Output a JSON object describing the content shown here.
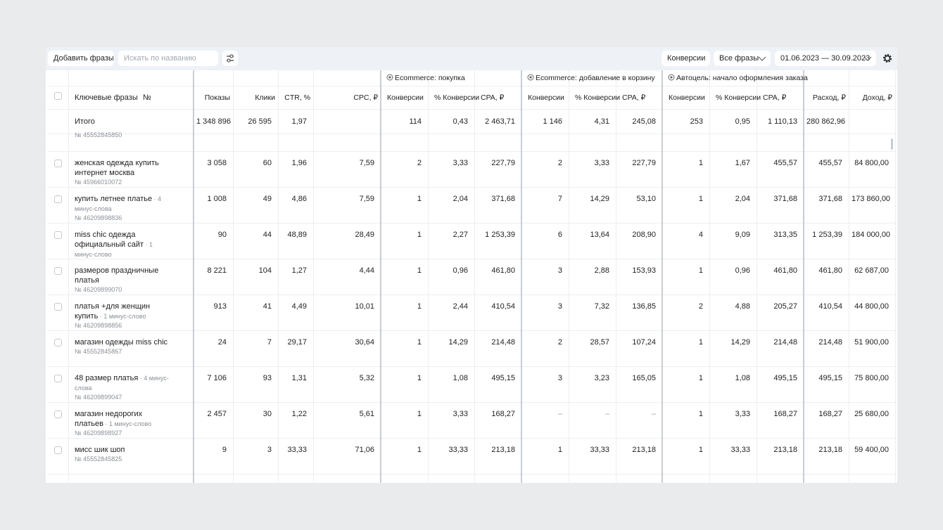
{
  "toolbar": {
    "add_button": "Добавить фразы",
    "search_placeholder": "Искать по названию",
    "conversions_button": "Конверсии",
    "phrases_filter": "Все фразы",
    "date_range": "01.06.2023 — 30.09.2023"
  },
  "table": {
    "groups": [
      "Ecommerce: покупка",
      "Ecommerce: добавление в корзину",
      "Автоцель: начало оформления заказа"
    ],
    "keyword_header": "Ключевые фразы",
    "number_header": "№",
    "columns": [
      "Показы",
      "Клики",
      "CTR, %",
      "CPC, ₽",
      "Конверсии",
      "% Конверсии",
      "CPA, ₽",
      "Конверсии",
      "% Конверсии",
      "CPA, ₽",
      "Конверсии",
      "% Конверсии",
      "CPA, ₽",
      "Расход, ₽",
      "Доход, ₽"
    ],
    "total": {
      "label": "Итого",
      "cells": [
        "1 348 896",
        "26 595",
        "1,97",
        null,
        "114",
        "0,43",
        "2 463,71",
        "1 146",
        "4,31",
        "245,08",
        "253",
        "0,95",
        "1 110,13",
        "280 862,96",
        null
      ]
    },
    "partial_row_id": "№ 45552845850",
    "rows": [
      {
        "phrase": "женская одежда купить интернет москва",
        "minus": null,
        "id": "№ 45966010072",
        "cells": [
          "3 058",
          "60",
          "1,96",
          "7,59",
          "2",
          "3,33",
          "227,79",
          "2",
          "3,33",
          "227,79",
          "1",
          "1,67",
          "455,57",
          "455,57",
          "84 800,00"
        ]
      },
      {
        "phrase": "купить летнее платье",
        "minus": "4 минус-слова",
        "id": "№ 46209898836",
        "cells": [
          "1 008",
          "49",
          "4,86",
          "7,59",
          "1",
          "2,04",
          "371,68",
          "7",
          "14,29",
          "53,10",
          "1",
          "2,04",
          "371,68",
          "371,68",
          "173 860,00"
        ]
      },
      {
        "phrase": "miss chic одежда официальный сайт",
        "minus": "1 минус-слово",
        "id": null,
        "cells": [
          "90",
          "44",
          "48,89",
          "28,49",
          "1",
          "2,27",
          "1 253,39",
          "6",
          "13,64",
          "208,90",
          "4",
          "9,09",
          "313,35",
          "1 253,39",
          "184 000,00"
        ]
      },
      {
        "phrase": "размеров праздничные платья",
        "minus": null,
        "id": "№ 46209899070",
        "cells": [
          "8 221",
          "104",
          "1,27",
          "4,44",
          "1",
          "0,96",
          "461,80",
          "3",
          "2,88",
          "153,93",
          "1",
          "0,96",
          "461,80",
          "461,80",
          "62 687,00"
        ]
      },
      {
        "phrase": "платья +для женщин купить",
        "minus": "1 минус-слово",
        "id": "№ 46209898856",
        "cells": [
          "913",
          "41",
          "4,49",
          "10,01",
          "1",
          "2,44",
          "410,54",
          "3",
          "7,32",
          "136,85",
          "2",
          "4,88",
          "205,27",
          "410,54",
          "44 800,00"
        ]
      },
      {
        "phrase": "магазин одежды miss chic",
        "minus": null,
        "id": "№ 45552845867",
        "cells": [
          "24",
          "7",
          "29,17",
          "30,64",
          "1",
          "14,29",
          "214,48",
          "2",
          "28,57",
          "107,24",
          "1",
          "14,29",
          "214,48",
          "214,48",
          "51 900,00"
        ]
      },
      {
        "phrase": "48 размер платья",
        "minus": "4 минус-слова",
        "id": "№ 46209899047",
        "cells": [
          "7 106",
          "93",
          "1,31",
          "5,32",
          "1",
          "1,08",
          "495,15",
          "3",
          "3,23",
          "165,05",
          "1",
          "1,08",
          "495,15",
          "495,15",
          "75 800,00"
        ]
      },
      {
        "phrase": "магазин недорогих платьев",
        "minus": "1 минус-слово",
        "id": "№ 46209898927",
        "cells": [
          "2 457",
          "30",
          "1,22",
          "5,61",
          "1",
          "3,33",
          "168,27",
          "–",
          "–",
          "–",
          "1",
          "3,33",
          "168,27",
          "168,27",
          "25 680,00"
        ]
      },
      {
        "phrase": "мисс шик шоп",
        "minus": null,
        "id": "№ 45552845825",
        "cells": [
          "9",
          "3",
          "33,33",
          "71,06",
          "1",
          "33,33",
          "213,18",
          "1",
          "33,33",
          "213,18",
          "1",
          "33,33",
          "213,18",
          "213,18",
          "59 400,00"
        ]
      }
    ]
  }
}
